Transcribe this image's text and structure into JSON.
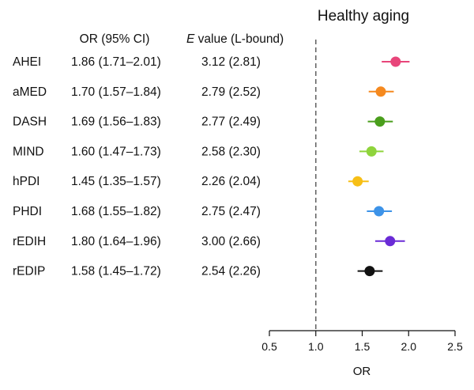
{
  "chart_data": {
    "type": "forest",
    "title": "Healthy aging",
    "column_headers": {
      "or": "OR (95% CI)",
      "e_value_prefix": "E",
      "e_value_rest": " value (L-bound)"
    },
    "xlabel": "OR",
    "xlim": [
      0.5,
      2.5
    ],
    "xticks": [
      0.5,
      1.0,
      1.5,
      2.0,
      2.5
    ],
    "xtick_labels": [
      "0.5",
      "1.0",
      "1.5",
      "2.0",
      "2.5"
    ],
    "reference_line": 1.0,
    "rows": [
      {
        "label": "AHEI",
        "or_text": "1.86 (1.71–2.01)",
        "e_text": "3.12 (2.81)",
        "or": 1.86,
        "lo": 1.71,
        "hi": 2.01,
        "color": "#e8457a"
      },
      {
        "label": "aMED",
        "or_text": "1.70 (1.57–1.84)",
        "e_text": "2.79 (2.52)",
        "or": 1.7,
        "lo": 1.57,
        "hi": 1.84,
        "color": "#f5891f"
      },
      {
        "label": "DASH",
        "or_text": "1.69 (1.56–1.83)",
        "e_text": "2.77 (2.49)",
        "or": 1.69,
        "lo": 1.56,
        "hi": 1.83,
        "color": "#4a9e1c"
      },
      {
        "label": "MIND",
        "or_text": "1.60 (1.47–1.73)",
        "e_text": "2.58 (2.30)",
        "or": 1.6,
        "lo": 1.47,
        "hi": 1.73,
        "color": "#8fd43c"
      },
      {
        "label": "hPDI",
        "or_text": "1.45 (1.35–1.57)",
        "e_text": "2.26 (2.04)",
        "or": 1.45,
        "lo": 1.35,
        "hi": 1.57,
        "color": "#f7bf16"
      },
      {
        "label": "PHDI",
        "or_text": "1.68 (1.55–1.82)",
        "e_text": "2.75 (2.47)",
        "or": 1.68,
        "lo": 1.55,
        "hi": 1.82,
        "color": "#3d93e8"
      },
      {
        "label": "rEDIH",
        "or_text": "1.80 (1.64–1.96)",
        "e_text": "3.00 (2.66)",
        "or": 1.8,
        "lo": 1.64,
        "hi": 1.96,
        "color": "#6a2bd6"
      },
      {
        "label": "rEDIP",
        "or_text": "1.58 (1.45–1.72)",
        "e_text": "2.54 (2.26)",
        "or": 1.58,
        "lo": 1.45,
        "hi": 1.72,
        "color": "#111111"
      }
    ]
  }
}
